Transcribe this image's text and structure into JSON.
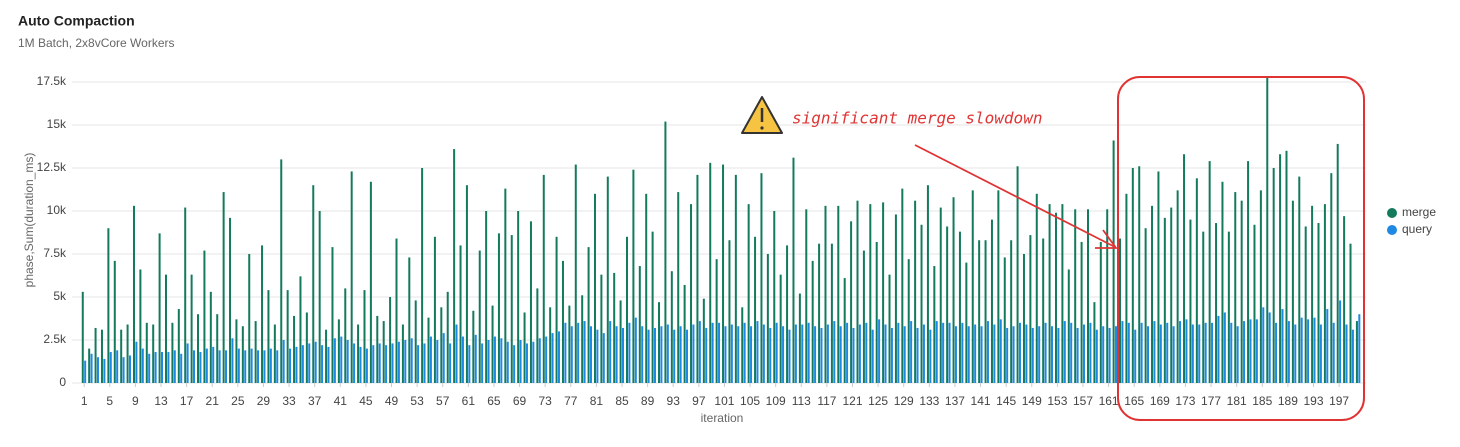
{
  "chart_data": {
    "type": "bar",
    "title": "Auto Compaction",
    "subtitle": "1M Batch, 2x8vCore Workers",
    "x_label": "iteration",
    "y_label": "phase,Sum(duration_ms)",
    "annotation": "significant merge slowdown",
    "grid": true,
    "legend": "right",
    "xlim": [
      -0.9,
      201.2
    ],
    "xticks": [
      1,
      5,
      9,
      13,
      17,
      21,
      25,
      29,
      33,
      37,
      41,
      45,
      49,
      53,
      57,
      61,
      65,
      69,
      73,
      77,
      81,
      85,
      89,
      93,
      97,
      101,
      105,
      109,
      113,
      117,
      121,
      125,
      129,
      133,
      137,
      141,
      145,
      149,
      153,
      157,
      161,
      165,
      169,
      173,
      177,
      181,
      185,
      189,
      193,
      197
    ],
    "ylim": [
      0,
      18000
    ],
    "yticks": [
      0,
      {
        "value": 2500,
        "label": "2.5k"
      },
      {
        "value": 5000,
        "label": "5k"
      },
      {
        "value": 7500,
        "label": "7.5k"
      },
      {
        "value": 10000,
        "label": "10k"
      },
      {
        "value": 12500,
        "label": "12.5k"
      },
      {
        "value": 15000,
        "label": "15k"
      },
      {
        "value": 17500,
        "label": "17.5k"
      }
    ],
    "x": [
      1,
      2,
      3,
      4,
      5,
      6,
      7,
      8,
      9,
      10,
      11,
      12,
      13,
      14,
      15,
      16,
      17,
      18,
      19,
      20,
      21,
      22,
      23,
      24,
      25,
      26,
      27,
      28,
      29,
      30,
      31,
      32,
      33,
      34,
      35,
      36,
      37,
      38,
      39,
      40,
      41,
      42,
      43,
      44,
      45,
      46,
      47,
      48,
      49,
      50,
      51,
      52,
      53,
      54,
      55,
      56,
      57,
      58,
      59,
      60,
      61,
      62,
      63,
      64,
      65,
      66,
      67,
      68,
      69,
      70,
      71,
      72,
      73,
      74,
      75,
      76,
      77,
      78,
      79,
      80,
      81,
      82,
      83,
      84,
      85,
      86,
      87,
      88,
      89,
      90,
      91,
      92,
      93,
      94,
      95,
      96,
      97,
      98,
      99,
      100,
      101,
      102,
      103,
      104,
      105,
      106,
      107,
      108,
      109,
      110,
      111,
      112,
      113,
      114,
      115,
      116,
      117,
      118,
      119,
      120,
      121,
      122,
      123,
      124,
      125,
      126,
      127,
      128,
      129,
      130,
      131,
      132,
      133,
      134,
      135,
      136,
      137,
      138,
      139,
      140,
      141,
      142,
      143,
      144,
      145,
      146,
      147,
      148,
      149,
      150,
      151,
      152,
      153,
      154,
      155,
      156,
      157,
      158,
      159,
      160,
      161,
      162,
      163,
      164,
      165,
      166,
      167,
      168,
      169,
      170,
      171,
      172,
      173,
      174,
      175,
      176,
      177,
      178,
      179,
      180,
      181,
      182,
      183,
      184,
      185,
      186,
      187,
      188,
      189,
      190,
      191,
      192,
      193,
      194,
      195,
      196,
      197,
      198,
      199,
      200
    ],
    "series": [
      {
        "name": "merge",
        "color": "#137a5c",
        "values": [
          5300,
          2000,
          3200,
          3100,
          9000,
          7100,
          3100,
          3400,
          10300,
          6600,
          3500,
          3400,
          8700,
          6300,
          3500,
          4300,
          10200,
          6300,
          4000,
          7700,
          5300,
          4000,
          11100,
          9600,
          3700,
          3300,
          7500,
          3600,
          8000,
          5400,
          3400,
          13000,
          5400,
          3900,
          6200,
          4100,
          11500,
          10000,
          3100,
          7900,
          3700,
          5500,
          12300,
          3400,
          5400,
          11700,
          3900,
          3600,
          5000,
          8400,
          3400,
          7300,
          4800,
          12500,
          3800,
          8500,
          4400,
          5300,
          13600,
          8000,
          11500,
          4200,
          7700,
          10000,
          4500,
          8700,
          11300,
          8600,
          10000,
          4100,
          9400,
          5500,
          12100,
          4400,
          8500,
          7100,
          4500,
          12700,
          5100,
          7900,
          11000,
          6300,
          12000,
          6400,
          4800,
          8500,
          12400,
          6800,
          11000,
          8800,
          4700,
          15200,
          6500,
          11100,
          5700,
          10400,
          12100,
          4900,
          12800,
          7200,
          12700,
          8300,
          12100,
          4400,
          10400,
          8500,
          12200,
          7500,
          10000,
          6300,
          8000,
          13100,
          5200,
          10100,
          7100,
          8100,
          10300,
          8100,
          10300,
          6100,
          9400,
          10600,
          7700,
          10400,
          8200,
          10500,
          6300,
          9800,
          11300,
          7200,
          10600,
          9200,
          11500,
          6800,
          10200,
          9100,
          10800,
          8800,
          7000,
          11200,
          8300,
          8300,
          9500,
          11200,
          7300,
          8300,
          12600,
          7500,
          8600,
          11000,
          8400,
          10400,
          9900,
          10400,
          6600,
          10100,
          8200,
          10100,
          4700,
          8200,
          10100,
          14100,
          8400,
          11000,
          12500,
          12600,
          9000,
          10300,
          12300,
          9600,
          10200,
          11200,
          13300,
          9500,
          11900,
          8800,
          12900,
          9300,
          11700,
          8800,
          11100,
          10600,
          12900,
          9200,
          11200,
          17800,
          12500,
          13300,
          13500,
          10600,
          12000,
          9100,
          10300,
          9300,
          10400,
          12200,
          13900,
          9700,
          8100,
          3600
        ]
      },
      {
        "name": "query",
        "color": "#1e88e5",
        "values": [
          1300,
          1700,
          1500,
          1400,
          1800,
          1900,
          1500,
          1600,
          2400,
          2000,
          1700,
          1800,
          1800,
          1800,
          1900,
          1700,
          2300,
          1900,
          1800,
          2000,
          2100,
          1900,
          1900,
          2600,
          2000,
          1900,
          2000,
          1900,
          1900,
          2000,
          1900,
          2500,
          2000,
          2100,
          2200,
          2300,
          2400,
          2200,
          2100,
          2600,
          2700,
          2500,
          2300,
          2100,
          2000,
          2200,
          2300,
          2200,
          2300,
          2400,
          2500,
          2600,
          2200,
          2300,
          2700,
          2500,
          2900,
          2300,
          3400,
          2700,
          2200,
          2800,
          2300,
          2500,
          2700,
          2600,
          2400,
          2200,
          2500,
          2300,
          2400,
          2600,
          2700,
          2900,
          3000,
          3500,
          3300,
          3500,
          3600,
          3300,
          3100,
          2900,
          3600,
          3300,
          3200,
          3500,
          3800,
          3300,
          3100,
          3200,
          3300,
          3400,
          3100,
          3300,
          3100,
          3400,
          3600,
          3200,
          3500,
          3500,
          3300,
          3400,
          3300,
          3500,
          3300,
          3600,
          3400,
          3200,
          3500,
          3300,
          3100,
          3400,
          3400,
          3500,
          3300,
          3200,
          3400,
          3600,
          3300,
          3500,
          3200,
          3400,
          3500,
          3100,
          3700,
          3400,
          3200,
          3500,
          3300,
          3600,
          3200,
          3400,
          3100,
          3600,
          3500,
          3500,
          3300,
          3500,
          3300,
          3400,
          3300,
          3600,
          3400,
          3700,
          3200,
          3300,
          3500,
          3400,
          3200,
          3300,
          3500,
          3300,
          3200,
          3600,
          3500,
          3200,
          3400,
          3500,
          3100,
          3300,
          3200,
          3300,
          3600,
          3500,
          3100,
          3500,
          3300,
          3600,
          3400,
          3500,
          3300,
          3600,
          3700,
          3400,
          3400,
          3500,
          3500,
          3900,
          4100,
          3500,
          3300,
          3600,
          3700,
          3700,
          4400,
          4100,
          3500,
          4300,
          3600,
          3400,
          3800,
          3700,
          3800,
          3400,
          4300,
          3500,
          4800,
          3400,
          3100,
          4000
        ]
      }
    ]
  }
}
